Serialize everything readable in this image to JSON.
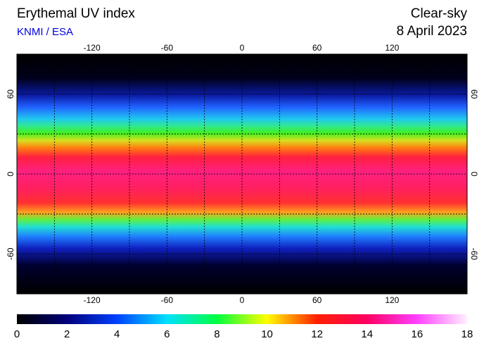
{
  "header": {
    "title": "Erythemal UV index",
    "source": "KNMI / ESA",
    "sky": "Clear-sky",
    "date": "8 April 2023"
  },
  "map": {
    "lonlim": [
      -180,
      180
    ],
    "latlim": [
      -90,
      90
    ],
    "lon_ticks": [
      -120,
      -60,
      0,
      60,
      120
    ],
    "lat_ticks": [
      60,
      0,
      -60
    ],
    "colorbar": {
      "lim": [
        0,
        18
      ],
      "ticks": [
        0,
        2,
        4,
        6,
        8,
        10,
        12,
        14,
        16,
        18
      ]
    }
  }
}
